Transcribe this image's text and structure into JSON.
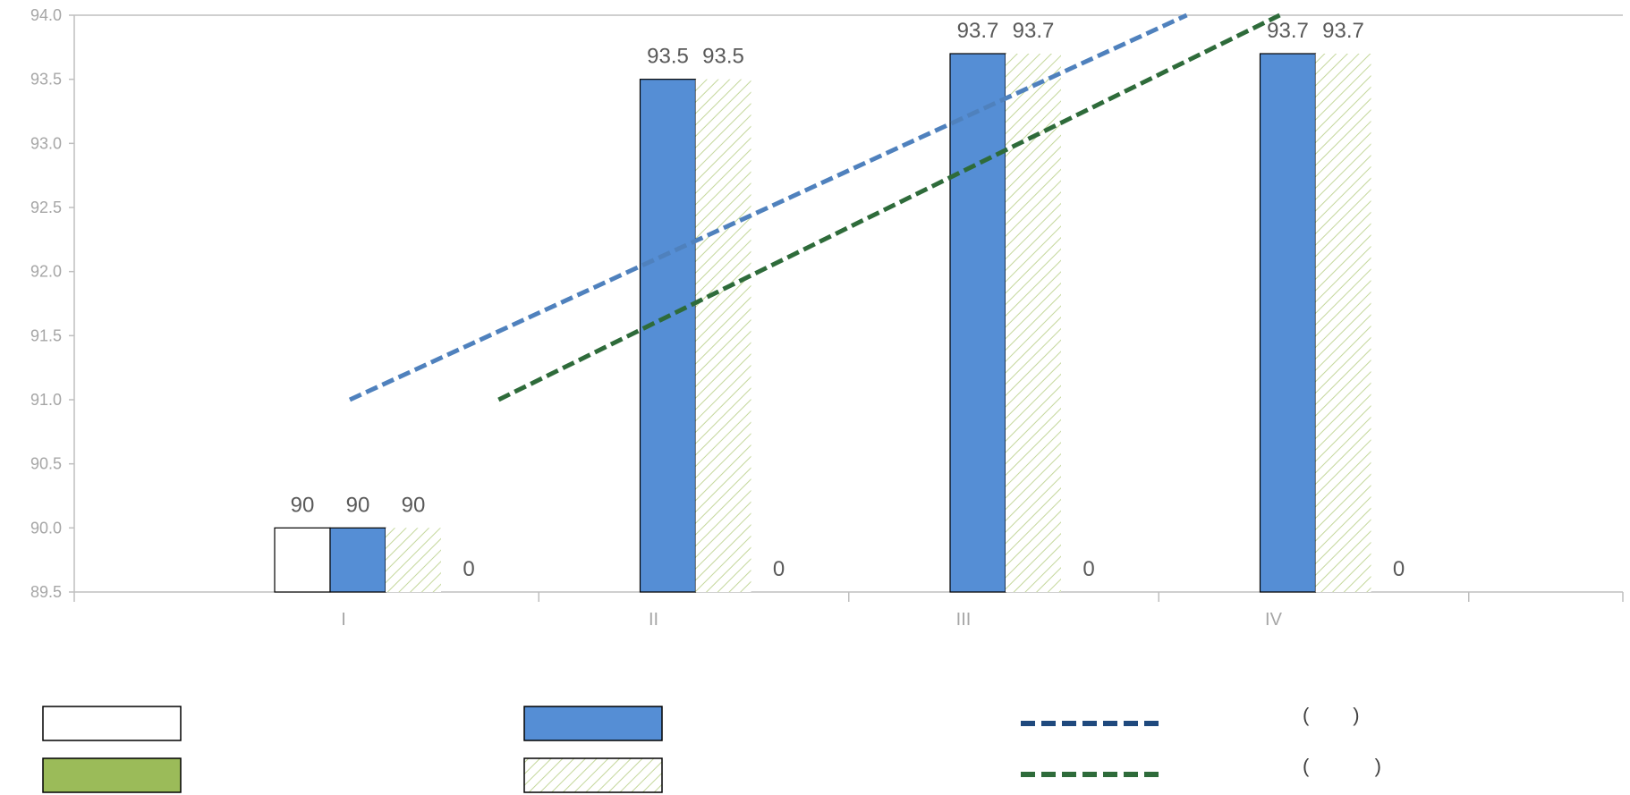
{
  "chart_data": {
    "type": "bar",
    "title": "",
    "xlabel": "",
    "ylabel": "",
    "categories": [
      "I",
      "II",
      "III",
      "IV"
    ],
    "ylim": [
      89.5,
      94.0
    ],
    "ytick_step": 0.5,
    "grid": false,
    "legend_position": "bottom",
    "series": [
      {
        "style": "white",
        "color": "#ffffff",
        "values": [
          90,
          null,
          null,
          null
        ],
        "labels": [
          "90",
          "",
          "",
          ""
        ]
      },
      {
        "style": "solid",
        "color": "#558ed5",
        "values": [
          90,
          93.5,
          93.7,
          93.7
        ],
        "labels": [
          "90",
          "93.5",
          "93.7",
          "93.7"
        ]
      },
      {
        "style": "hatched",
        "color": "#c4d79b",
        "values": [
          90,
          93.5,
          93.7,
          93.7
        ],
        "labels": [
          "90",
          "93.5",
          "93.7",
          "93.7"
        ]
      },
      {
        "style": "solid",
        "color": "#9bbb59",
        "values": [
          0,
          0,
          0,
          0
        ],
        "labels": [
          "0",
          "0",
          "0",
          "0"
        ]
      }
    ],
    "lines": [
      {
        "style": "dashed",
        "color": "#4f81bd",
        "legend_color": "#1f497d",
        "legend_text": "(        )",
        "points": [
          [
            0.0,
            91.0
          ],
          [
            2.7,
            94.0
          ]
        ]
      },
      {
        "style": "dashed",
        "color": "#2e6b3a",
        "legend_color": "#2e6b3a",
        "legend_text": "(            )",
        "points": [
          [
            0.48,
            91.0
          ],
          [
            3.0,
            94.0
          ]
        ]
      }
    ]
  }
}
